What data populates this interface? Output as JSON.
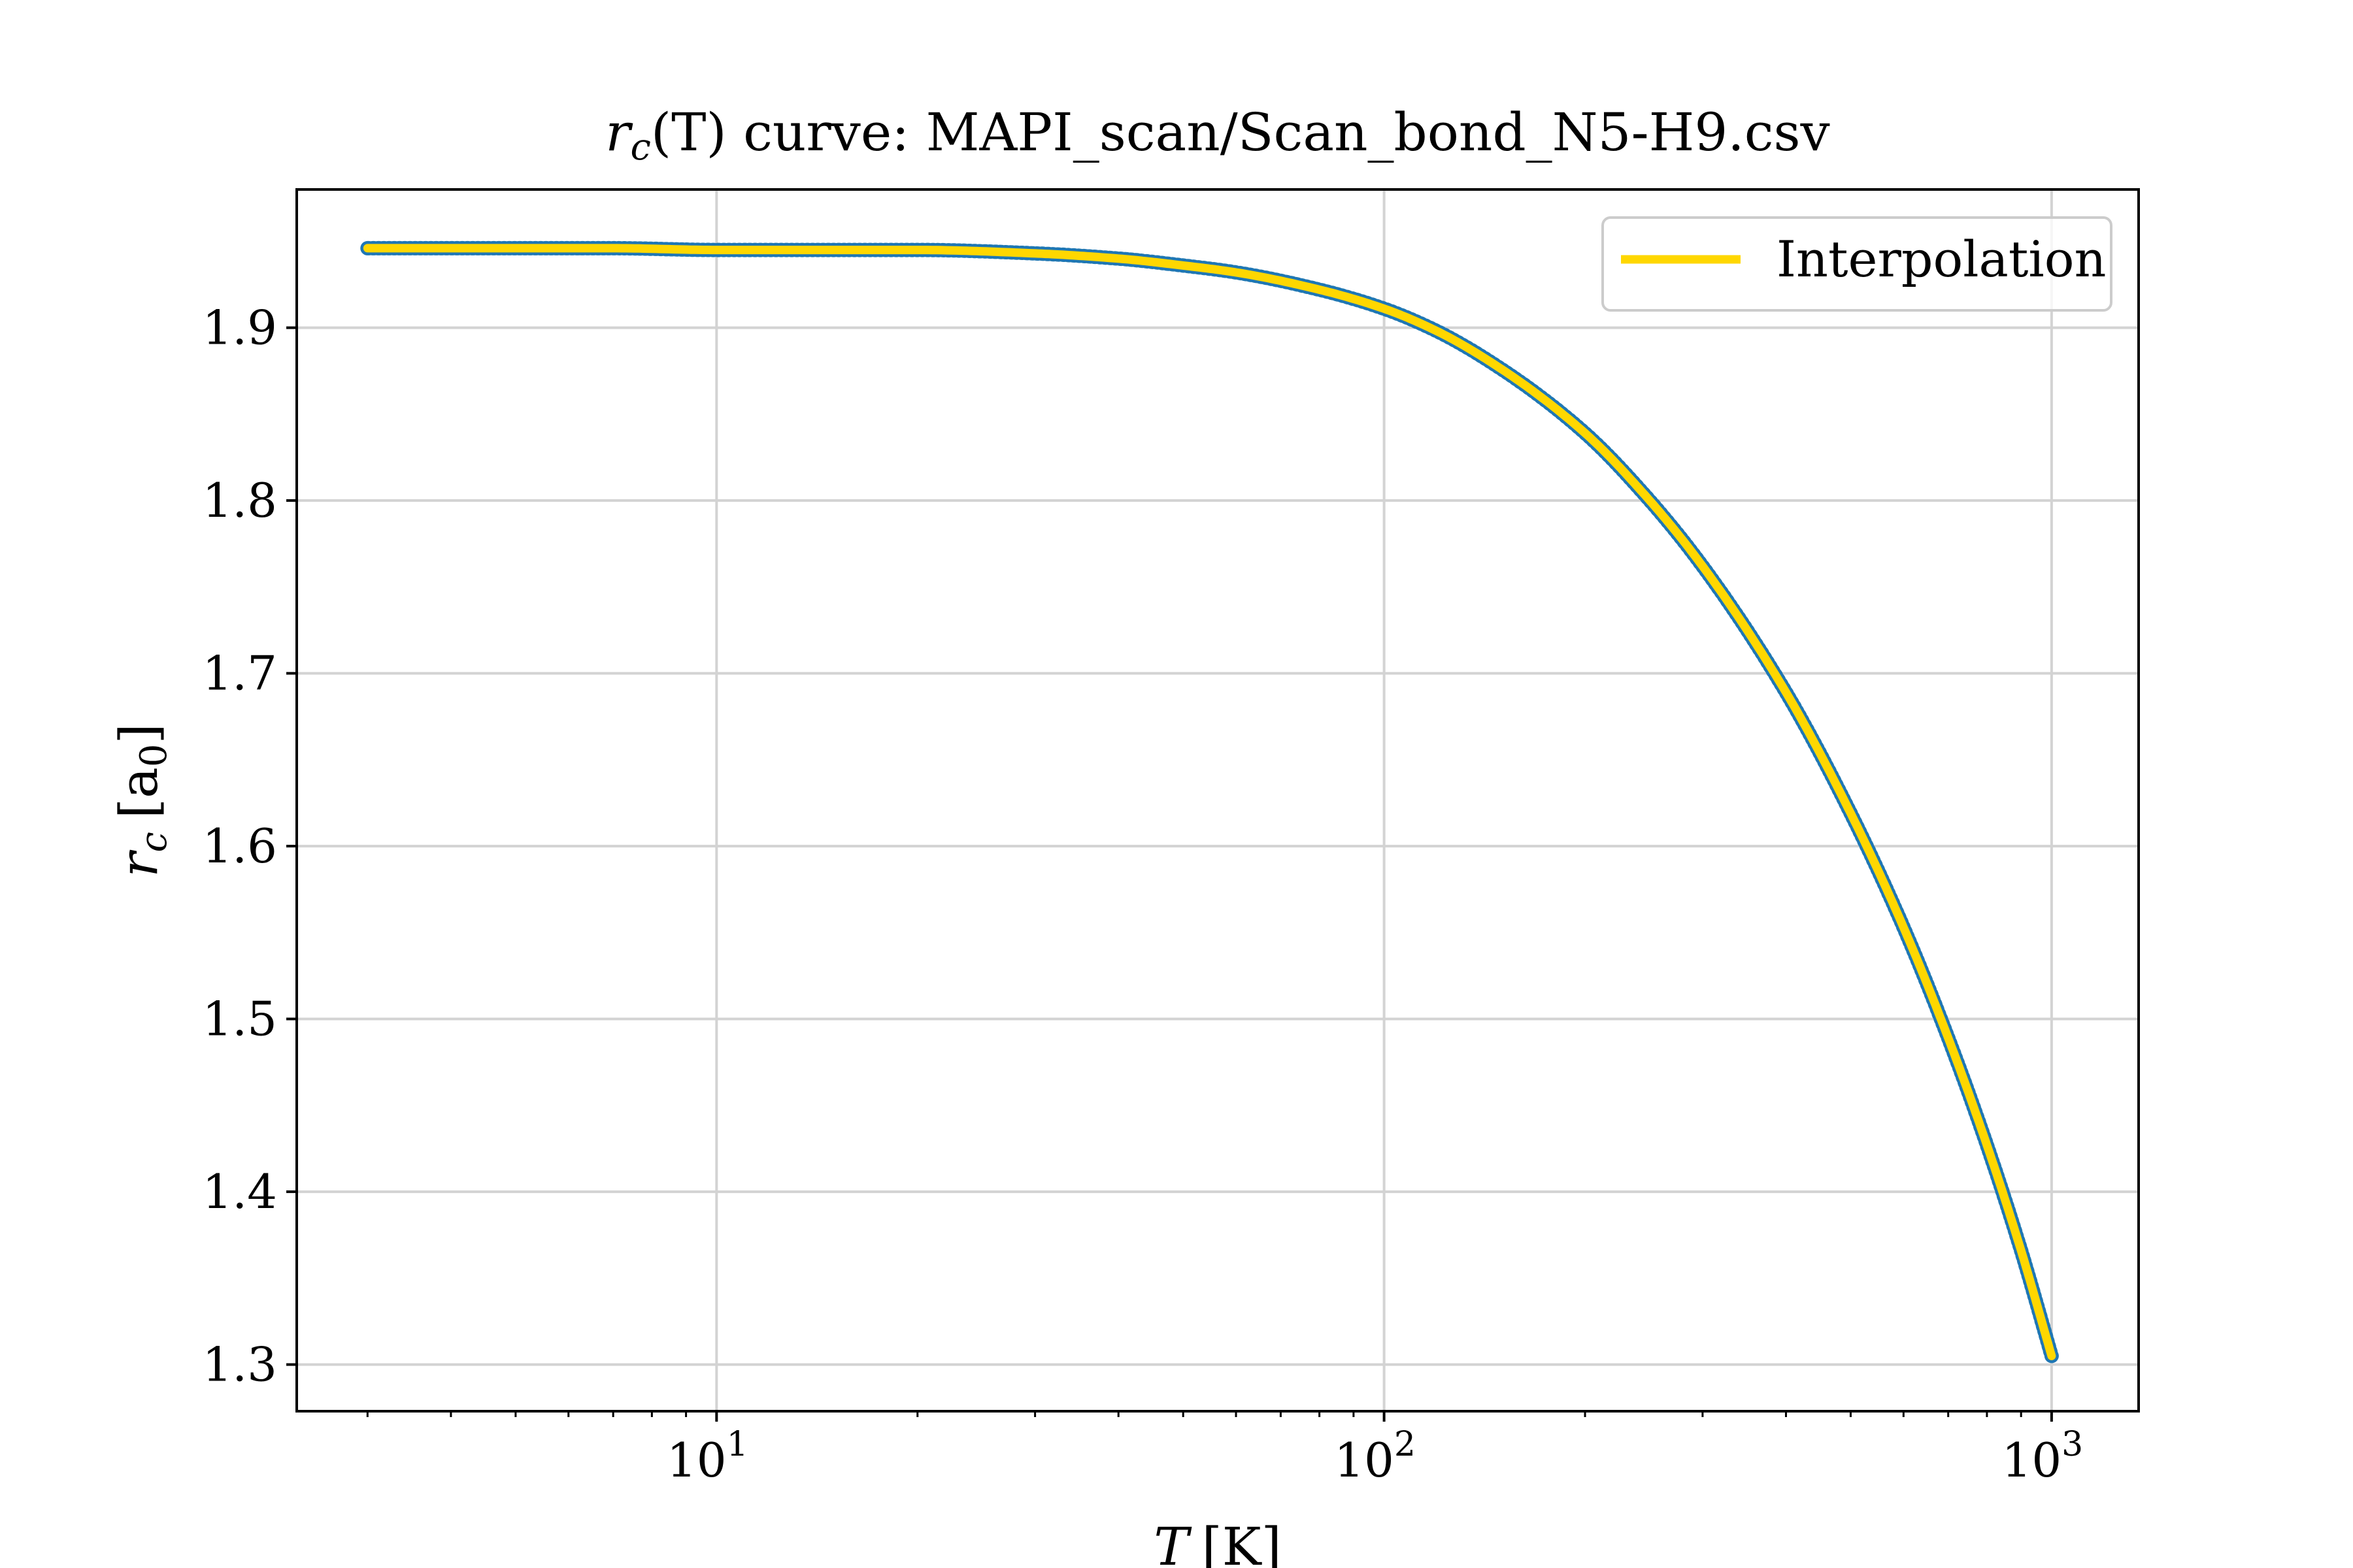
{
  "chart_data": {
    "type": "line",
    "title_prefix": "r",
    "title_sub": "c",
    "title_paren": "(T)",
    "title_text": " curve: MAPI_scan/Scan_bond_N5-H9.csv",
    "xlabel_var": "T",
    "xlabel_unit": "[K]",
    "ylabel_var": "r",
    "ylabel_sub": "c",
    "ylabel_unit_open": "[a",
    "ylabel_unit_sub": "0",
    "ylabel_unit_close": "]",
    "x_scale": "log",
    "xlim": [
      2.35,
      1350
    ],
    "ylim": [
      1.273,
      1.98
    ],
    "x_ticks": [
      {
        "value": 10,
        "base": "10",
        "exp": "1"
      },
      {
        "value": 100,
        "base": "10",
        "exp": "2"
      },
      {
        "value": 1000,
        "base": "10",
        "exp": "3"
      }
    ],
    "y_ticks": [
      1.3,
      1.4,
      1.5,
      1.6,
      1.7,
      1.8,
      1.9
    ],
    "y_tick_labels": [
      "1.3",
      "1.4",
      "1.5",
      "1.6",
      "1.7",
      "1.8",
      "1.9"
    ],
    "grid": true,
    "legend": {
      "position": "upper-right",
      "label": "Interpolation"
    },
    "colors": {
      "line": "#FFD700",
      "points": "#1f77b4",
      "grid": "#d3d3d3",
      "axes": "#000000"
    },
    "series": [
      {
        "name": "Interpolation",
        "x": [
          3,
          4,
          5,
          7,
          10,
          15,
          20,
          30,
          40,
          50,
          60,
          80,
          100,
          120,
          150,
          200,
          250,
          300,
          400,
          500,
          600,
          700,
          800,
          900,
          1000
        ],
        "y": [
          1.946,
          1.946,
          1.946,
          1.946,
          1.945,
          1.945,
          1.945,
          1.943,
          1.94,
          1.936,
          1.932,
          1.922,
          1.911,
          1.898,
          1.876,
          1.839,
          1.8,
          1.762,
          1.689,
          1.619,
          1.553,
          1.489,
          1.427,
          1.366,
          1.305
        ]
      }
    ]
  }
}
